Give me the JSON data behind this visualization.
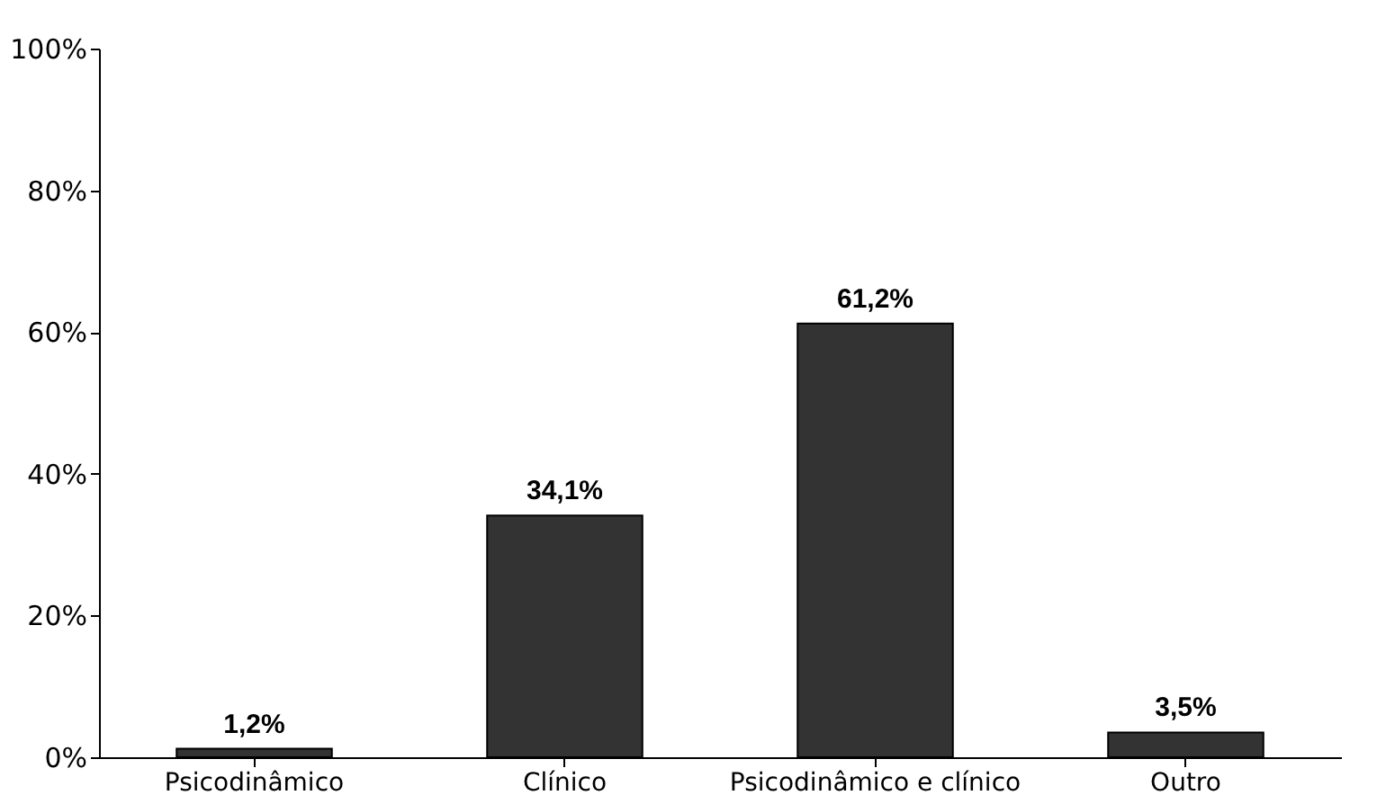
{
  "chart_data": {
    "type": "bar",
    "categories": [
      "Psicodinâmico",
      "Clínico",
      "Psicodinâmico e clínico",
      "Outro"
    ],
    "values": [
      1.2,
      34.1,
      61.2,
      3.5
    ],
    "value_labels": [
      "1,2%",
      "34,1%",
      "61,2%",
      "3,5%"
    ],
    "color": "#333333",
    "ylim": [
      0,
      100
    ],
    "yticks": [
      {
        "value": 0,
        "label": "0%"
      },
      {
        "value": 20,
        "label": "20%"
      },
      {
        "value": 40,
        "label": "40%"
      },
      {
        "value": 60,
        "label": "60%"
      },
      {
        "value": 80,
        "label": "80%"
      },
      {
        "value": 100,
        "label": "100%"
      }
    ],
    "grid": false
  }
}
